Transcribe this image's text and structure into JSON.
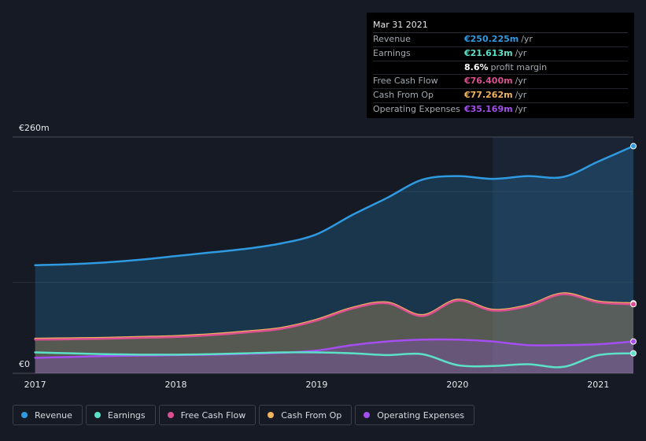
{
  "tooltip": {
    "date": "Mar 31 2021",
    "rows": [
      {
        "label": "Revenue",
        "value": "€250.225m",
        "unit": "/yr",
        "color": "#2f9ae0"
      },
      {
        "label": "Earnings",
        "value": "€21.613m",
        "unit": "/yr",
        "color": "#5ce0c8"
      },
      {
        "label": "",
        "value": "8.6%",
        "unit": "profit margin",
        "color": "#ffffff"
      },
      {
        "label": "Free Cash Flow",
        "value": "€76.400m",
        "unit": "/yr",
        "color": "#d94f8f"
      },
      {
        "label": "Cash From Op",
        "value": "€77.262m",
        "unit": "/yr",
        "color": "#f2b35e"
      },
      {
        "label": "Operating Expenses",
        "value": "€35.169m",
        "unit": "/yr",
        "color": "#a44ef0"
      }
    ]
  },
  "legend": [
    {
      "label": "Revenue",
      "color": "#2f9ae0"
    },
    {
      "label": "Earnings",
      "color": "#5ce0c8"
    },
    {
      "label": "Free Cash Flow",
      "color": "#d94f8f"
    },
    {
      "label": "Cash From Op",
      "color": "#f2b35e"
    },
    {
      "label": "Operating Expenses",
      "color": "#a44ef0"
    }
  ],
  "chart_data": {
    "type": "area",
    "title": "",
    "currency_unit": "€m",
    "ylim": [
      0,
      260
    ],
    "y_tick_labels": [
      {
        "value": 260,
        "label": "€260m"
      },
      {
        "value": 0,
        "label": "€0"
      }
    ],
    "x_ticks": [
      {
        "value": 2017.0,
        "label": "2017"
      },
      {
        "value": 2018.0,
        "label": "2018"
      },
      {
        "value": 2019.0,
        "label": "2019"
      },
      {
        "value": 2020.0,
        "label": "2020"
      },
      {
        "value": 2021.0,
        "label": "2021"
      }
    ],
    "xlim": [
      2016.84,
      2021.25
    ],
    "highlight_start": 2020.25,
    "series": [
      {
        "name": "Revenue",
        "color": "#2f9ae0",
        "fill": true,
        "x": [
          2017.0,
          2017.25,
          2017.5,
          2017.75,
          2018.0,
          2018.25,
          2018.5,
          2018.75,
          2019.0,
          2019.25,
          2019.5,
          2019.75,
          2020.0,
          2020.25,
          2020.5,
          2020.75,
          2021.0,
          2021.25
        ],
        "values": [
          119,
          120,
          122,
          125,
          129,
          133,
          137,
          143,
          153,
          174,
          193,
          213,
          217,
          214,
          217,
          216,
          233,
          250
        ]
      },
      {
        "name": "Cash From Op",
        "color": "#f2b35e",
        "fill": true,
        "x": [
          2017.0,
          2017.25,
          2017.5,
          2017.75,
          2018.0,
          2018.25,
          2018.5,
          2018.75,
          2019.0,
          2019.25,
          2019.5,
          2019.75,
          2020.0,
          2020.25,
          2020.5,
          2020.75,
          2021.0,
          2021.25
        ],
        "values": [
          38,
          38.5,
          39,
          40,
          41,
          43,
          46,
          50,
          59,
          72,
          78,
          64,
          81,
          70,
          75,
          88,
          79,
          77
        ]
      },
      {
        "name": "Free Cash Flow",
        "color": "#d94f8f",
        "fill": false,
        "x": [
          2017.0,
          2017.25,
          2017.5,
          2017.75,
          2018.0,
          2018.25,
          2018.5,
          2018.75,
          2019.0,
          2019.25,
          2019.5,
          2019.75,
          2020.0,
          2020.25,
          2020.5,
          2020.75,
          2021.0,
          2021.25
        ],
        "values": [
          37,
          37.5,
          38,
          39,
          40,
          42,
          45,
          49,
          58,
          71,
          77,
          63,
          80,
          69,
          74,
          87,
          78,
          76
        ]
      },
      {
        "name": "Operating Expenses",
        "color": "#a44ef0",
        "fill": true,
        "x": [
          2017.0,
          2017.25,
          2017.5,
          2017.75,
          2018.0,
          2018.25,
          2018.5,
          2018.75,
          2019.0,
          2019.25,
          2019.5,
          2019.75,
          2020.0,
          2020.25,
          2020.5,
          2020.75,
          2021.0,
          2021.25
        ],
        "values": [
          17,
          18,
          19,
          19.5,
          20,
          20.5,
          21.5,
          22.5,
          25,
          31,
          35,
          37,
          37,
          35,
          31,
          31,
          32,
          35
        ]
      },
      {
        "name": "Earnings",
        "color": "#5ce0c8",
        "fill": false,
        "x": [
          2017.0,
          2017.25,
          2017.5,
          2017.75,
          2018.0,
          2018.25,
          2018.5,
          2018.75,
          2019.0,
          2019.25,
          2019.5,
          2019.75,
          2020.0,
          2020.25,
          2020.5,
          2020.75,
          2021.0,
          2021.25
        ],
        "values": [
          23,
          22,
          21,
          20.5,
          20.5,
          21,
          22,
          23,
          23,
          22,
          20,
          21,
          9,
          8,
          10,
          7,
          20,
          22
        ]
      }
    ]
  }
}
